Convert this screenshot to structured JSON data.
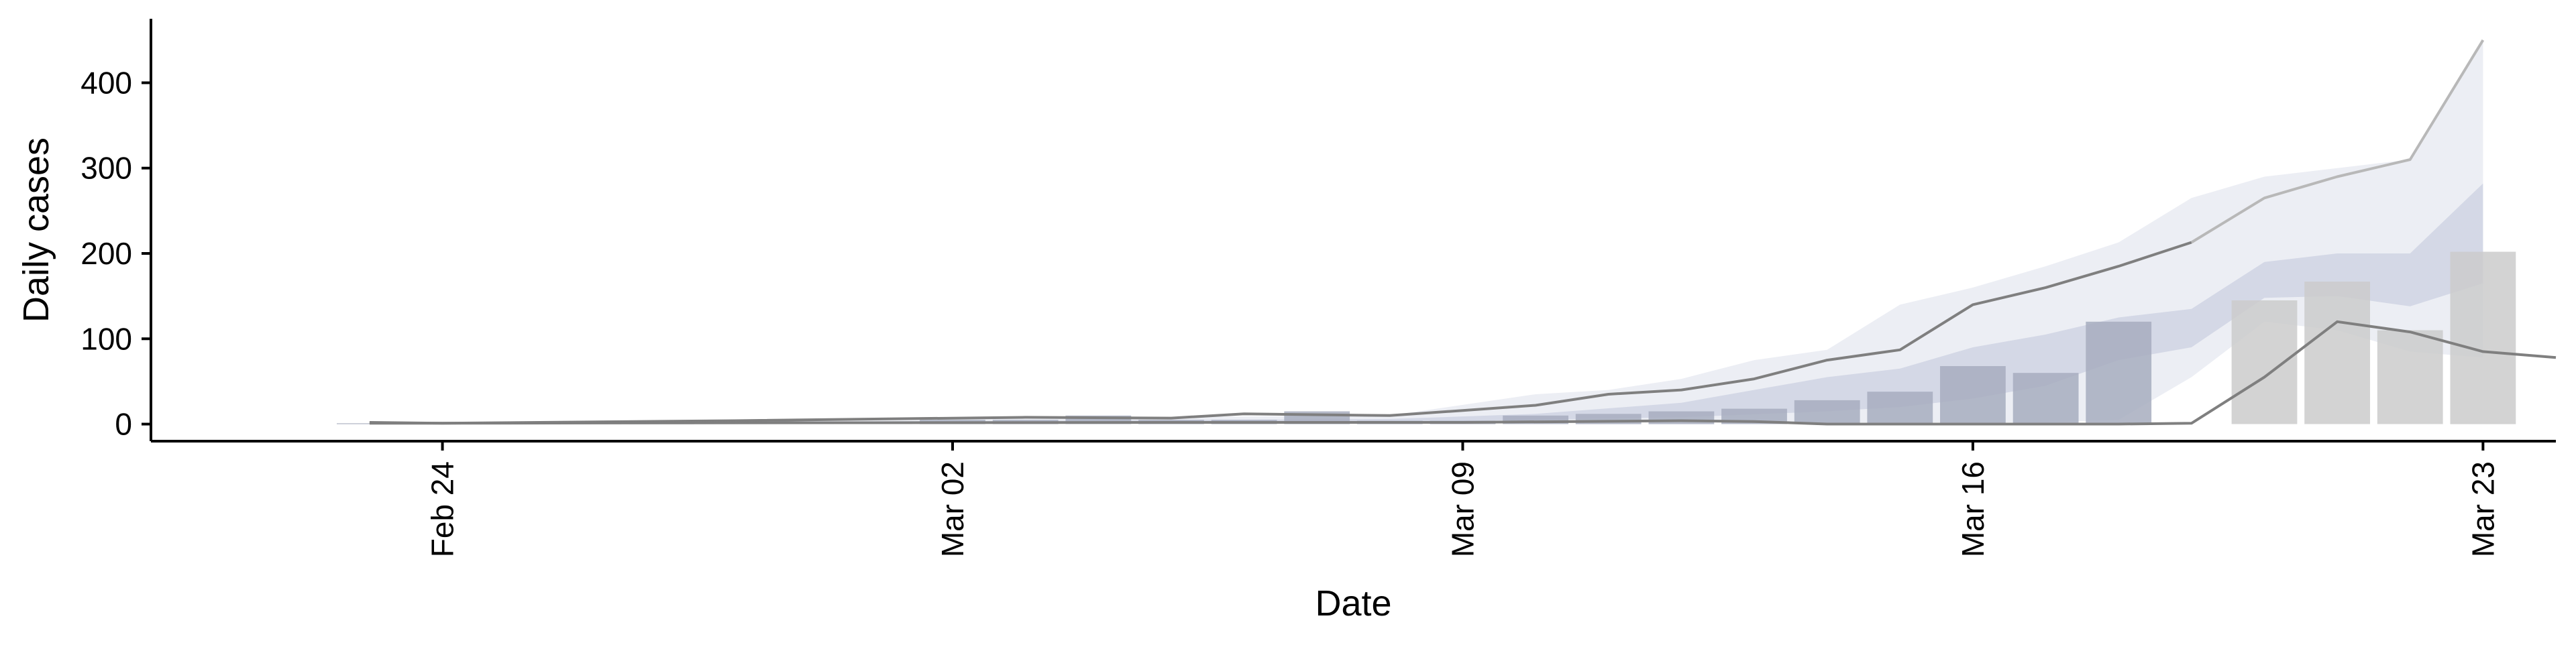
{
  "chart_data": {
    "type": "bar",
    "xlabel": "Date",
    "ylabel": "Daily cases",
    "x_ticks": [
      {
        "date": "2020-02-24",
        "label": "Feb 24"
      },
      {
        "date": "2020-03-02",
        "label": "Mar 02"
      },
      {
        "date": "2020-03-09",
        "label": "Mar 09"
      },
      {
        "date": "2020-03-16",
        "label": "Mar 16"
      },
      {
        "date": "2020-03-23",
        "label": "Mar 23"
      }
    ],
    "y_ticks": [
      0,
      100,
      200,
      300,
      400
    ],
    "xlim": [
      "2020-02-20",
      "2020-03-24"
    ],
    "ylim": [
      -20,
      475
    ],
    "grid": false,
    "legend": "none",
    "colors": {
      "bar_observed": "#a7adbe",
      "bar_forecast": "#cbcbcb",
      "band_outer": "#eceef4",
      "band_inner": "#d4d8e6",
      "line_upper": "#7f7f7f",
      "line_lower": "#7f7f7f",
      "line_upper_forecast": "#b8b8b8",
      "axis": "#000000"
    },
    "bars_observed": [
      {
        "date": "2020-02-23",
        "value": 1
      },
      {
        "date": "2020-02-24",
        "value": 1
      },
      {
        "date": "2020-02-25",
        "value": 1
      },
      {
        "date": "2020-02-26",
        "value": 1
      },
      {
        "date": "2020-02-27",
        "value": 1
      },
      {
        "date": "2020-02-28",
        "value": 3
      },
      {
        "date": "2020-02-29",
        "value": 3
      },
      {
        "date": "2020-03-01",
        "value": 3
      },
      {
        "date": "2020-03-02",
        "value": 5
      },
      {
        "date": "2020-03-03",
        "value": 5
      },
      {
        "date": "2020-03-04",
        "value": 10
      },
      {
        "date": "2020-03-05",
        "value": 5
      },
      {
        "date": "2020-03-06",
        "value": 5
      },
      {
        "date": "2020-03-07",
        "value": 15
      },
      {
        "date": "2020-03-08",
        "value": 4
      },
      {
        "date": "2020-03-09",
        "value": 4
      },
      {
        "date": "2020-03-10",
        "value": 10
      },
      {
        "date": "2020-03-11",
        "value": 12
      },
      {
        "date": "2020-03-12",
        "value": 15
      },
      {
        "date": "2020-03-13",
        "value": 18
      },
      {
        "date": "2020-03-14",
        "value": 28
      },
      {
        "date": "2020-03-15",
        "value": 38
      },
      {
        "date": "2020-03-16",
        "value": 68
      },
      {
        "date": "2020-03-17",
        "value": 60
      },
      {
        "date": "2020-03-18",
        "value": 120
      }
    ],
    "bars_forecast_period": [
      {
        "date": "2020-03-20",
        "value": 145
      },
      {
        "date": "2020-03-21",
        "value": 167
      },
      {
        "date": "2020-03-22",
        "value": 110
      },
      {
        "date": "2020-03-23",
        "value": 202
      }
    ],
    "band_outer": [
      {
        "date": "2020-02-23",
        "low": 0,
        "high": 2
      },
      {
        "date": "2020-02-28",
        "low": 0,
        "high": 4
      },
      {
        "date": "2020-03-03",
        "low": 0,
        "high": 7
      },
      {
        "date": "2020-03-08",
        "low": 0,
        "high": 10
      },
      {
        "date": "2020-03-10",
        "low": 2,
        "high": 35
      },
      {
        "date": "2020-03-11",
        "low": 3,
        "high": 40
      },
      {
        "date": "2020-03-12",
        "low": 4,
        "high": 53
      },
      {
        "date": "2020-03-13",
        "low": 3,
        "high": 75
      },
      {
        "date": "2020-03-14",
        "low": 2,
        "high": 87
      },
      {
        "date": "2020-03-15",
        "low": 2,
        "high": 140
      },
      {
        "date": "2020-03-16",
        "low": 2,
        "high": 160
      },
      {
        "date": "2020-03-17",
        "low": 2,
        "high": 185
      },
      {
        "date": "2020-03-18",
        "low": 5,
        "high": 213
      },
      {
        "date": "2020-03-19",
        "low": 55,
        "high": 265
      },
      {
        "date": "2020-03-20",
        "low": 120,
        "high": 290
      },
      {
        "date": "2020-03-21",
        "low": 110,
        "high": 300
      },
      {
        "date": "2020-03-22",
        "low": 85,
        "high": 310
      },
      {
        "date": "2020-03-23",
        "low": 78,
        "high": 450
      }
    ],
    "band_inner": [
      {
        "date": "2020-02-23",
        "low": 0,
        "high": 1
      },
      {
        "date": "2020-03-03",
        "low": 1,
        "high": 4
      },
      {
        "date": "2020-03-08",
        "low": 2,
        "high": 6
      },
      {
        "date": "2020-03-10",
        "low": 5,
        "high": 12
      },
      {
        "date": "2020-03-12",
        "low": 8,
        "high": 25
      },
      {
        "date": "2020-03-14",
        "low": 15,
        "high": 55
      },
      {
        "date": "2020-03-15",
        "low": 20,
        "high": 65
      },
      {
        "date": "2020-03-16",
        "low": 30,
        "high": 90
      },
      {
        "date": "2020-03-17",
        "low": 45,
        "high": 105
      },
      {
        "date": "2020-03-18",
        "low": 75,
        "high": 125
      },
      {
        "date": "2020-03-19",
        "low": 90,
        "high": 135
      },
      {
        "date": "2020-03-20",
        "low": 148,
        "high": 190
      },
      {
        "date": "2020-03-21",
        "low": 150,
        "high": 200
      },
      {
        "date": "2020-03-22",
        "low": 138,
        "high": 200
      },
      {
        "date": "2020-03-23",
        "low": 165,
        "high": 282
      }
    ],
    "line_upper": [
      {
        "date": "2020-02-23",
        "value": 2
      },
      {
        "date": "2020-02-24",
        "value": 1
      },
      {
        "date": "2020-02-28",
        "value": 4
      },
      {
        "date": "2020-03-03",
        "value": 8
      },
      {
        "date": "2020-03-05",
        "value": 7
      },
      {
        "date": "2020-03-06",
        "value": 12
      },
      {
        "date": "2020-03-08",
        "value": 10
      },
      {
        "date": "2020-03-09",
        "value": 16
      },
      {
        "date": "2020-03-10",
        "value": 22
      },
      {
        "date": "2020-03-11",
        "value": 35
      },
      {
        "date": "2020-03-12",
        "value": 40
      },
      {
        "date": "2020-03-13",
        "value": 53
      },
      {
        "date": "2020-03-14",
        "value": 75
      },
      {
        "date": "2020-03-15",
        "value": 87
      },
      {
        "date": "2020-03-16",
        "value": 140
      },
      {
        "date": "2020-03-17",
        "value": 160
      },
      {
        "date": "2020-03-18",
        "value": 185
      },
      {
        "date": "2020-03-19",
        "value": 213
      }
    ],
    "line_upper_forecast": [
      {
        "date": "2020-03-19",
        "value": 213
      },
      {
        "date": "2020-03-20",
        "value": 265
      },
      {
        "date": "2020-03-21",
        "value": 290
      },
      {
        "date": "2020-03-22",
        "value": 310
      },
      {
        "date": "2020-03-23",
        "value": 450
      }
    ],
    "line_lower": [
      {
        "date": "2020-02-23",
        "value": 1
      },
      {
        "date": "2020-03-05",
        "value": 2
      },
      {
        "date": "2020-03-09",
        "value": 2
      },
      {
        "date": "2020-03-12",
        "value": 4
      },
      {
        "date": "2020-03-13",
        "value": 3
      },
      {
        "date": "2020-03-14",
        "value": 0
      },
      {
        "date": "2020-03-18",
        "value": 0
      },
      {
        "date": "2020-03-19",
        "value": 1
      },
      {
        "date": "2020-03-20",
        "value": 55
      },
      {
        "date": "2020-03-21",
        "value": 120
      },
      {
        "date": "2020-03-22",
        "value": 108
      },
      {
        "date": "2020-03-23",
        "value": 85
      },
      {
        "date": "2020-03-24",
        "value": 78
      }
    ]
  }
}
